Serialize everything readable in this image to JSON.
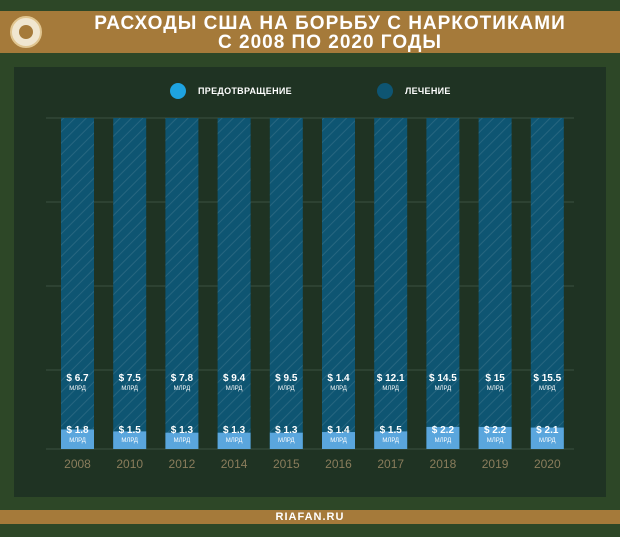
{
  "header": {
    "title_line1": "РАСХОДЫ США НА БОРЬБУ С НАРКОТИКАМИ",
    "title_line2": "С 2008 ПО 2020 ГОДЫ"
  },
  "footer": {
    "site": "RIAFAN.RU"
  },
  "colors": {
    "background": "#2d4727",
    "panel": "#1f3323",
    "header_bar": "#a57a3a",
    "prevention": "#5aa6dd",
    "treatment": "#0e5572",
    "year_label": "#8a7d5c"
  },
  "chart_data": {
    "type": "bar",
    "stacked": true,
    "categories": [
      "2008",
      "2010",
      "2012",
      "2014",
      "2015",
      "2016",
      "2017",
      "2018",
      "2019",
      "2020"
    ],
    "series": [
      {
        "name": "ПРЕДОТВРАЩЕНИЕ",
        "color": "#5aa6dd",
        "values": [
          1.8,
          1.5,
          1.3,
          1.3,
          1.3,
          1.4,
          1.5,
          2.2,
          2.2,
          2.1
        ],
        "labels": [
          "$ 1.8",
          "$ 1.5",
          "$ 1.3",
          "$ 1.3",
          "$ 1.3",
          "$ 1.4",
          "$ 1.5",
          "$ 2.2",
          "$ 2.2",
          "$ 2.1"
        ]
      },
      {
        "name": "ЛЕЧЕНИЕ",
        "color": "#0e5572",
        "values": [
          6.7,
          7.5,
          7.8,
          9.4,
          9.5,
          1.4,
          12.1,
          14.5,
          15,
          15.5
        ],
        "labels": [
          "$ 6.7",
          "$ 7.5",
          "$ 7.8",
          "$ 9.4",
          "$ 9.5",
          "$ 1.4",
          "$ 12.1",
          "$ 14.5",
          "$ 15",
          "$ 15.5"
        ]
      }
    ],
    "unit_label": "МЛРД",
    "legend_position": "top",
    "grid": true
  }
}
